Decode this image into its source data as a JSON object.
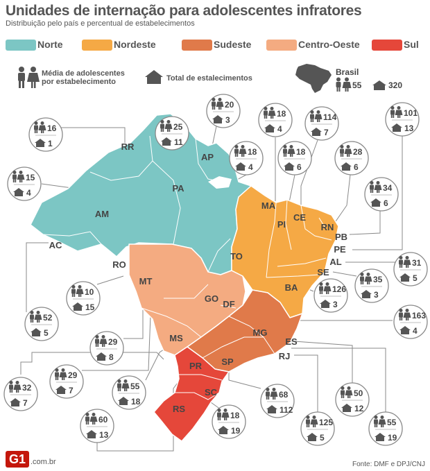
{
  "title": "Unidades de internação para adolescentes infratores",
  "subtitle": "Distribuição pelo país e percentual de estabelecimentos",
  "legend": [
    {
      "label": "Norte",
      "color": "#7cc6c4"
    },
    {
      "label": "Nordeste",
      "color": "#f5a945"
    },
    {
      "label": "Sudeste",
      "color": "#e07a4a"
    },
    {
      "label": "Centro-Oeste",
      "color": "#f4ab81"
    },
    {
      "label": "Sul",
      "color": "#e5473a"
    }
  ],
  "key": {
    "average_line1": "Média de adolescentes",
    "average_line2": "por estabelecimento",
    "total": "Total de estalecimentos"
  },
  "brasil": {
    "label": "Brasil",
    "average": "55",
    "total": "320"
  },
  "states": [
    {
      "uf": "RR",
      "average": "16",
      "total": "1"
    },
    {
      "uf": "PA",
      "average": "25",
      "total": "11"
    },
    {
      "uf": "AP",
      "average": "20",
      "total": "3"
    },
    {
      "uf": "AM",
      "average": "15",
      "total": "4"
    },
    {
      "uf": "AC",
      "average": "52",
      "total": "5"
    },
    {
      "uf": "RO",
      "average": "10",
      "total": "15"
    },
    {
      "uf": "MA",
      "average": "18",
      "total": "4"
    },
    {
      "uf": "TO",
      "average": "18",
      "total": "4"
    },
    {
      "uf": "PI",
      "average": "18",
      "total": "6"
    },
    {
      "uf": "CE",
      "average": "114",
      "total": "7"
    },
    {
      "uf": "RN",
      "average": "28",
      "total": "6"
    },
    {
      "uf": "PB",
      "average": "34",
      "total": "6"
    },
    {
      "uf": "PE",
      "average": "101",
      "total": "13"
    },
    {
      "uf": "AL",
      "average": "31",
      "total": "5"
    },
    {
      "uf": "SE",
      "average": "35",
      "total": "3"
    },
    {
      "uf": "BA",
      "average": "126",
      "total": "3"
    },
    {
      "uf": "DF",
      "average": "163",
      "total": "4"
    },
    {
      "uf": "MT",
      "average": "29",
      "total": "8"
    },
    {
      "uf": "GO",
      "average": "29",
      "total": "7"
    },
    {
      "uf": "MS",
      "average": "55",
      "total": "18"
    },
    {
      "uf": "MG",
      "average": "50",
      "total": "12"
    },
    {
      "uf": "ES",
      "average": "55",
      "total": "19"
    },
    {
      "uf": "RJ",
      "average": "125",
      "total": "5"
    },
    {
      "uf": "SP",
      "average": "68",
      "total": "112"
    },
    {
      "uf": "PR",
      "average": "60",
      "total": "13"
    },
    {
      "uf": "SC",
      "average": "18",
      "total": "19"
    },
    {
      "uf": "RS",
      "average": "32",
      "total": "7"
    }
  ],
  "footer": {
    "logo": "G1",
    "domain": ".com.br",
    "source": "Fonte: DMF e DPJ/CNJ"
  }
}
